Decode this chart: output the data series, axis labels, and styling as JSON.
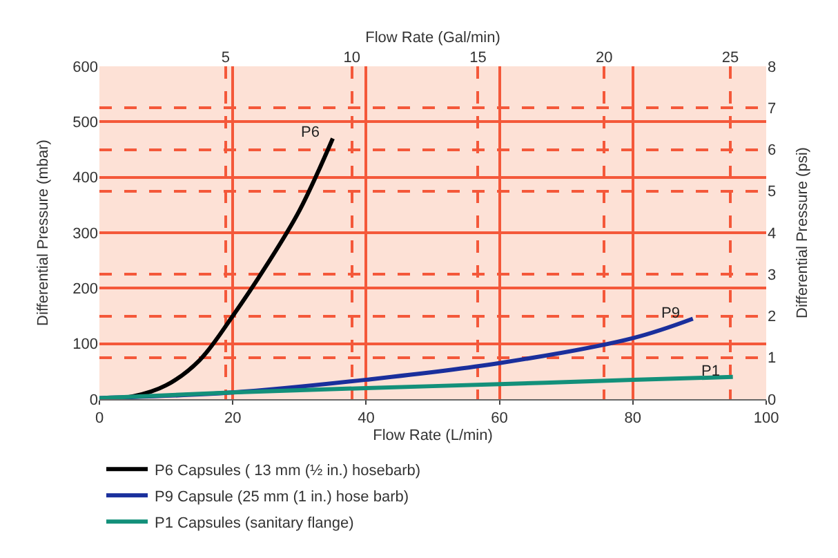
{
  "chart_data": {
    "type": "line",
    "xlabel": "Flow Rate (L/min)",
    "ylabel": "Differential Pressure (mbar)",
    "y2label": "Differential Pressure (psi)",
    "x2label": "Flow Rate (Gal/min)",
    "xlim": [
      0,
      100
    ],
    "xticks": [
      0,
      20,
      40,
      60,
      80,
      100
    ],
    "ylim": [
      0,
      600
    ],
    "yticks": [
      0,
      100,
      200,
      300,
      400,
      500,
      600
    ],
    "y2lim": [
      0,
      8
    ],
    "y2ticks": [
      0,
      1,
      2,
      3,
      4,
      5,
      6,
      7,
      8
    ],
    "x2lim": [
      0,
      26.42
    ],
    "x2ticks": [
      5,
      10,
      15,
      20,
      25
    ],
    "grid": true,
    "legend": "bottom left",
    "marker": "none",
    "line_style": "solid",
    "series": [
      {
        "name": "P6 Capsules ( 13 mm (½ in.) hosebarb)",
        "color": "#000000",
        "x": [
          0,
          5,
          10,
          15,
          20,
          25,
          30,
          35
        ],
        "values": [
          0,
          5,
          25,
          70,
          150,
          240,
          340,
          470
        ]
      },
      {
        "name": "P9 Capsule (25 mm (1 in.) hose barb)",
        "color": "#1a2f9c",
        "x": [
          0,
          20,
          40,
          60,
          80,
          89
        ],
        "values": [
          2,
          12,
          35,
          65,
          110,
          145
        ]
      },
      {
        "name": "P1 Capsules (sanitary flange)",
        "color": "#13907a",
        "x": [
          0,
          20,
          40,
          60,
          80,
          95
        ],
        "values": [
          2,
          12,
          20,
          27,
          35,
          40
        ]
      }
    ],
    "annotations": [
      {
        "text": "P6",
        "x": 35,
        "y": 470
      },
      {
        "text": "P9",
        "x": 89,
        "y": 145
      },
      {
        "text": "P1",
        "x": 95,
        "y": 40
      }
    ]
  }
}
